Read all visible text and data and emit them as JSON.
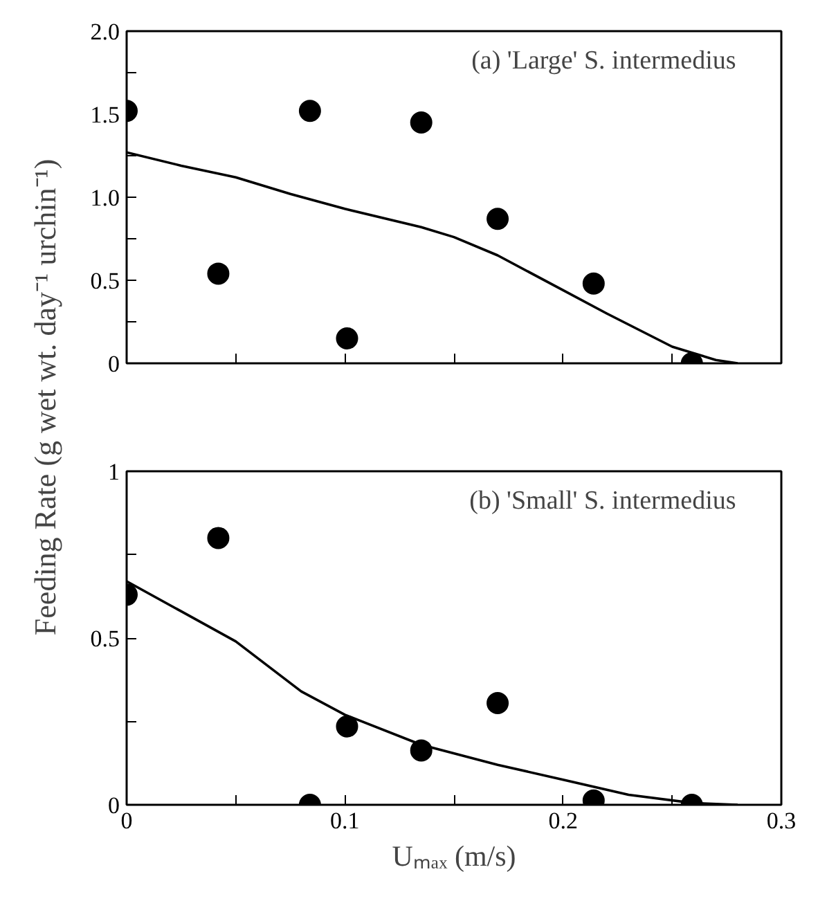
{
  "chart_data": [
    {
      "type": "scatter",
      "ylabel": "Feeding Rate (g wet wt. day⁻¹ urchin⁻¹)",
      "annotations": [
        "(a)  'Large' S. intermedius"
      ],
      "grid": false,
      "tick_labels": "y",
      "xlim": [
        0,
        0.3
      ],
      "ylim": [
        0,
        2.0
      ],
      "xticks": [
        0,
        {
          "value": 0.05,
          "label": null
        },
        0.1,
        {
          "value": 0.15,
          "label": null
        },
        0.2,
        {
          "value": 0.25,
          "label": null
        },
        0.3
      ],
      "yticks": [
        0,
        {
          "value": 0.25,
          "label": null
        },
        0.5,
        {
          "value": 0.75,
          "label": null
        },
        {
          "value": 1,
          "label": "1.0"
        },
        {
          "value": 1.25,
          "label": null
        },
        1.5,
        {
          "value": 1.75,
          "label": null
        },
        {
          "value": 2,
          "label": "2.0"
        }
      ],
      "series": [
        {
          "marker": "circle",
          "color": "#000000",
          "x": [
            0,
            0.042,
            0.084,
            0.101,
            0.135,
            0.17,
            0.214,
            0.259
          ],
          "values": [
            1.52,
            0.54,
            1.52,
            0.15,
            1.45,
            0.87,
            0.48,
            0
          ]
        },
        {
          "type": "line",
          "color": "#000000",
          "x": [
            0,
            0.025,
            0.05,
            0.075,
            0.1,
            0.135,
            0.15,
            0.17,
            0.2,
            0.22,
            0.25,
            0.27,
            0.28
          ],
          "values": [
            1.27,
            1.19,
            1.12,
            1.02,
            0.93,
            0.82,
            0.76,
            0.65,
            0.44,
            0.3,
            0.1,
            0.02,
            0
          ]
        }
      ]
    },
    {
      "type": "scatter",
      "xlabel": "Uₘₐₓ (m/s)",
      "annotations": [
        "(b)  'Small' S. intermedius"
      ],
      "grid": false,
      "xlim": [
        0,
        0.3
      ],
      "ylim": [
        0,
        1
      ],
      "xticks": [
        0,
        {
          "value": 0.05,
          "label": null
        },
        0.1,
        {
          "value": 0.15,
          "label": null
        },
        0.2,
        {
          "value": 0.25,
          "label": null
        },
        0.3
      ],
      "yticks": [
        0,
        {
          "value": 0.25,
          "label": null
        },
        0.5,
        {
          "value": 0.75,
          "label": null
        },
        1
      ],
      "series": [
        {
          "marker": "circle",
          "color": "#000000",
          "x": [
            0,
            0.042,
            0.084,
            0.101,
            0.135,
            0.17,
            0.214,
            0.259
          ],
          "values": [
            0.63,
            0.8,
            0,
            0.235,
            0.163,
            0.305,
            0.013,
            0
          ]
        },
        {
          "type": "line",
          "color": "#000000",
          "x": [
            0,
            0.025,
            0.05,
            0.08,
            0.1,
            0.135,
            0.17,
            0.2,
            0.23,
            0.26,
            0.28
          ],
          "values": [
            0.67,
            0.58,
            0.49,
            0.34,
            0.27,
            0.18,
            0.12,
            0.075,
            0.03,
            0.005,
            0
          ]
        }
      ]
    }
  ]
}
